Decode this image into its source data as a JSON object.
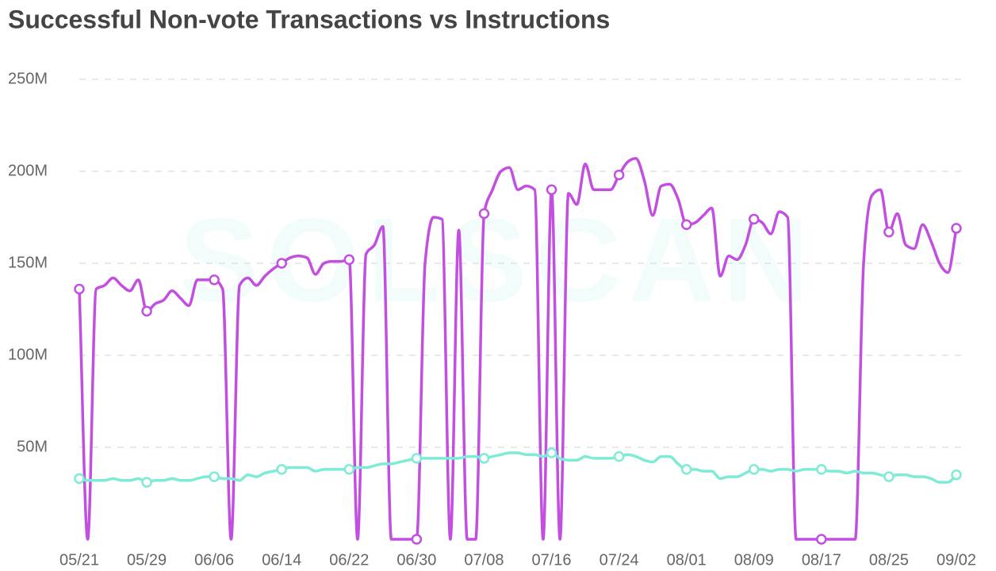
{
  "chart_data": {
    "type": "line",
    "title": "Successful Non-vote Transactions vs Instructions",
    "watermark": "SOLSCAN",
    "categories": [
      "05/21",
      null,
      null,
      null,
      null,
      null,
      null,
      null,
      "05/29",
      null,
      null,
      null,
      null,
      null,
      null,
      null,
      "06/06",
      null,
      null,
      null,
      null,
      null,
      null,
      null,
      "06/14",
      null,
      null,
      null,
      null,
      null,
      null,
      null,
      "06/22",
      null,
      null,
      null,
      null,
      null,
      null,
      null,
      "06/30",
      null,
      null,
      null,
      null,
      null,
      null,
      null,
      "07/08",
      null,
      null,
      null,
      null,
      null,
      null,
      null,
      "07/16",
      null,
      null,
      null,
      null,
      null,
      null,
      null,
      "07/24",
      null,
      null,
      null,
      null,
      null,
      null,
      null,
      "08/01",
      null,
      null,
      null,
      null,
      null,
      null,
      null,
      "08/09",
      null,
      null,
      null,
      null,
      null,
      null,
      null,
      "08/17",
      null,
      null,
      null,
      null,
      null,
      null,
      null,
      "08/25",
      null,
      null,
      null,
      null,
      null,
      null,
      null,
      "09/02"
    ],
    "series": [
      {
        "color": "#c24fe0",
        "values": [
          136000000,
          0,
          136000000,
          138000000,
          142000000,
          138000000,
          135000000,
          141000000,
          124000000,
          128000000,
          130000000,
          135000000,
          131000000,
          127000000,
          141000000,
          141000000,
          141000000,
          136000000,
          0,
          138000000,
          142000000,
          138000000,
          143000000,
          147000000,
          150000000,
          153000000,
          154000000,
          153000000,
          144000000,
          150000000,
          151000000,
          151000000,
          152000000,
          0,
          155000000,
          160000000,
          170000000,
          0,
          0,
          0,
          0,
          150000000,
          175000000,
          174000000,
          0,
          168000000,
          0,
          0,
          177000000,
          190000000,
          200000000,
          202000000,
          190000000,
          192000000,
          190000000,
          0,
          190000000,
          0,
          188000000,
          182000000,
          204000000,
          190000000,
          190000000,
          190000000,
          198000000,
          205000000,
          207000000,
          195000000,
          176000000,
          192000000,
          193000000,
          185000000,
          171000000,
          172000000,
          176000000,
          180000000,
          143000000,
          154000000,
          152000000,
          160000000,
          174000000,
          172000000,
          166000000,
          178000000,
          175000000,
          0,
          0,
          0,
          0,
          0,
          0,
          0,
          0,
          150000000,
          187000000,
          190000000,
          167000000,
          177000000,
          160000000,
          158000000,
          171000000,
          162000000,
          150000000,
          145000000,
          169000000
        ]
      },
      {
        "color": "#7debd6",
        "values": [
          33000000,
          32000000,
          32000000,
          32000000,
          33000000,
          32000000,
          32000000,
          33000000,
          31000000,
          32000000,
          32000000,
          33000000,
          32000000,
          32000000,
          33000000,
          34000000,
          34000000,
          33000000,
          33000000,
          32000000,
          35000000,
          34000000,
          36000000,
          37000000,
          38000000,
          39000000,
          39000000,
          39000000,
          37000000,
          38000000,
          38000000,
          38000000,
          38000000,
          39000000,
          39000000,
          40000000,
          41000000,
          41000000,
          42000000,
          43000000,
          44000000,
          44000000,
          44000000,
          44000000,
          44000000,
          44000000,
          45000000,
          45000000,
          44000000,
          45000000,
          46000000,
          47000000,
          47000000,
          46000000,
          46000000,
          45000000,
          47000000,
          44000000,
          43000000,
          43000000,
          45000000,
          44000000,
          44000000,
          44000000,
          45000000,
          46000000,
          45000000,
          43000000,
          42000000,
          45000000,
          45000000,
          41000000,
          38000000,
          38000000,
          37000000,
          37000000,
          33000000,
          34000000,
          34000000,
          36000000,
          38000000,
          38000000,
          37000000,
          38000000,
          38000000,
          37000000,
          38000000,
          38000000,
          38000000,
          37000000,
          37000000,
          36000000,
          37000000,
          36000000,
          36000000,
          35000000,
          34000000,
          35000000,
          35000000,
          34000000,
          34000000,
          33000000,
          31000000,
          31000000,
          35000000
        ]
      }
    ],
    "ylim": [
      0,
      250000000
    ],
    "yticks": [
      {
        "value": 50000000,
        "label": "50M"
      },
      {
        "value": 100000000,
        "label": "100M"
      },
      {
        "value": 150000000,
        "label": "150M"
      },
      {
        "value": 200000000,
        "label": "200M"
      },
      {
        "value": 250000000,
        "label": "250M"
      }
    ],
    "grid": true,
    "marker_every": 8
  }
}
